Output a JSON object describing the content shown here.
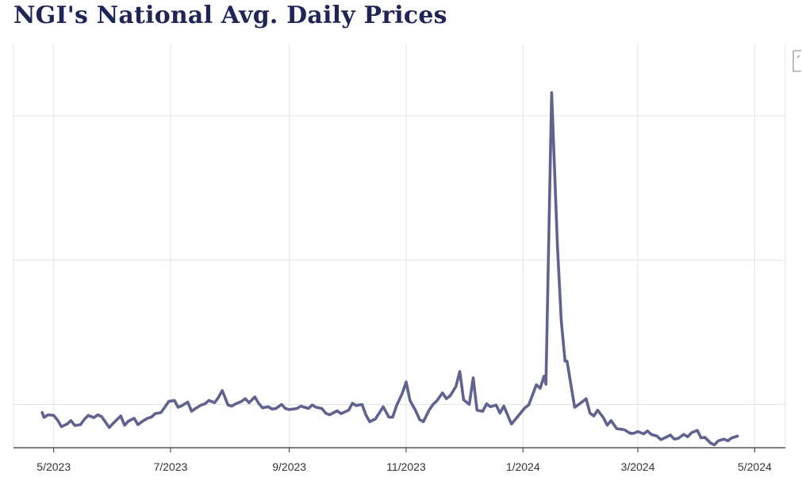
{
  "title": "NGI's National Avg. Daily Prices",
  "colors": {
    "line": "#60628f",
    "grid": "#e3e3e3",
    "axis": "#333333",
    "title": "#1f2557"
  },
  "icons": {
    "corner": "document-corner-icon"
  },
  "chart_data": {
    "type": "line",
    "title": "NGI's National Avg. Daily Prices",
    "xlabel": "",
    "ylabel": "",
    "x_type": "date",
    "xlim": [
      "2023-04-10",
      "2024-05-17"
    ],
    "ylim": [
      1.0,
      15.0
    ],
    "grid": true,
    "legend": "none",
    "x_ticks": [
      "5/2023",
      "7/2023",
      "9/2023",
      "11/2023",
      "1/2024",
      "3/2024",
      "5/2024"
    ],
    "x_tick_dates": [
      "2023-05-01",
      "2023-07-01",
      "2023-09-01",
      "2023-11-01",
      "2024-01-01",
      "2024-03-01",
      "2024-05-01"
    ],
    "y_gridlines": [
      2.5,
      7.5,
      12.5
    ],
    "series": [
      {
        "values": [
          [
            "2023-04-25",
            2.22
          ],
          [
            "2023-04-26",
            2.05
          ],
          [
            "2023-04-28",
            2.14
          ],
          [
            "2023-05-01",
            2.12
          ],
          [
            "2023-05-03",
            1.96
          ],
          [
            "2023-05-05",
            1.73
          ],
          [
            "2023-05-08",
            1.82
          ],
          [
            "2023-05-10",
            1.94
          ],
          [
            "2023-05-12",
            1.77
          ],
          [
            "2023-05-15",
            1.8
          ],
          [
            "2023-05-17",
            1.98
          ],
          [
            "2023-05-19",
            2.12
          ],
          [
            "2023-05-22",
            2.04
          ],
          [
            "2023-05-24",
            2.14
          ],
          [
            "2023-05-26",
            2.08
          ],
          [
            "2023-05-30",
            1.7
          ],
          [
            "2023-06-01",
            1.84
          ],
          [
            "2023-06-05",
            2.1
          ],
          [
            "2023-06-07",
            1.78
          ],
          [
            "2023-06-09",
            1.92
          ],
          [
            "2023-06-12",
            2.02
          ],
          [
            "2023-06-14",
            1.8
          ],
          [
            "2023-06-16",
            1.9
          ],
          [
            "2023-06-19",
            2.02
          ],
          [
            "2023-06-21",
            2.06
          ],
          [
            "2023-06-23",
            2.18
          ],
          [
            "2023-06-26",
            2.22
          ],
          [
            "2023-06-28",
            2.4
          ],
          [
            "2023-06-30",
            2.6
          ],
          [
            "2023-07-03",
            2.64
          ],
          [
            "2023-07-05",
            2.4
          ],
          [
            "2023-07-07",
            2.46
          ],
          [
            "2023-07-10",
            2.58
          ],
          [
            "2023-07-12",
            2.26
          ],
          [
            "2023-07-14",
            2.36
          ],
          [
            "2023-07-17",
            2.48
          ],
          [
            "2023-07-19",
            2.52
          ],
          [
            "2023-07-21",
            2.64
          ],
          [
            "2023-07-24",
            2.56
          ],
          [
            "2023-07-26",
            2.74
          ],
          [
            "2023-07-28",
            2.98
          ],
          [
            "2023-07-31",
            2.48
          ],
          [
            "2023-08-02",
            2.44
          ],
          [
            "2023-08-04",
            2.52
          ],
          [
            "2023-08-07",
            2.6
          ],
          [
            "2023-08-09",
            2.7
          ],
          [
            "2023-08-11",
            2.56
          ],
          [
            "2023-08-14",
            2.76
          ],
          [
            "2023-08-16",
            2.54
          ],
          [
            "2023-08-18",
            2.38
          ],
          [
            "2023-08-21",
            2.42
          ],
          [
            "2023-08-23",
            2.34
          ],
          [
            "2023-08-25",
            2.36
          ],
          [
            "2023-08-28",
            2.5
          ],
          [
            "2023-08-30",
            2.36
          ],
          [
            "2023-09-01",
            2.32
          ],
          [
            "2023-09-05",
            2.36
          ],
          [
            "2023-09-07",
            2.44
          ],
          [
            "2023-09-11",
            2.36
          ],
          [
            "2023-09-13",
            2.48
          ],
          [
            "2023-09-15",
            2.4
          ],
          [
            "2023-09-18",
            2.36
          ],
          [
            "2023-09-20",
            2.2
          ],
          [
            "2023-09-22",
            2.14
          ],
          [
            "2023-09-26",
            2.28
          ],
          [
            "2023-09-28",
            2.18
          ],
          [
            "2023-10-02",
            2.3
          ],
          [
            "2023-10-04",
            2.54
          ],
          [
            "2023-10-06",
            2.46
          ],
          [
            "2023-10-09",
            2.5
          ],
          [
            "2023-10-11",
            2.14
          ],
          [
            "2023-10-13",
            1.9
          ],
          [
            "2023-10-16",
            2.0
          ],
          [
            "2023-10-18",
            2.2
          ],
          [
            "2023-10-20",
            2.42
          ],
          [
            "2023-10-23",
            2.06
          ],
          [
            "2023-10-25",
            2.06
          ],
          [
            "2023-10-27",
            2.46
          ],
          [
            "2023-10-30",
            2.88
          ],
          [
            "2023-11-01",
            3.28
          ],
          [
            "2023-11-03",
            2.64
          ],
          [
            "2023-11-06",
            2.28
          ],
          [
            "2023-11-08",
            1.98
          ],
          [
            "2023-11-10",
            1.9
          ],
          [
            "2023-11-13",
            2.3
          ],
          [
            "2023-11-15",
            2.5
          ],
          [
            "2023-11-17",
            2.62
          ],
          [
            "2023-11-20",
            2.9
          ],
          [
            "2023-11-22",
            2.7
          ],
          [
            "2023-11-24",
            2.8
          ],
          [
            "2023-11-27",
            3.12
          ],
          [
            "2023-11-29",
            3.64
          ],
          [
            "2023-12-01",
            2.66
          ],
          [
            "2023-12-04",
            2.5
          ],
          [
            "2023-12-06",
            3.42
          ],
          [
            "2023-12-08",
            2.3
          ],
          [
            "2023-12-11",
            2.26
          ],
          [
            "2023-12-13",
            2.52
          ],
          [
            "2023-12-15",
            2.42
          ],
          [
            "2023-12-18",
            2.48
          ],
          [
            "2023-12-20",
            2.2
          ],
          [
            "2023-12-22",
            2.44
          ],
          [
            "2023-12-26",
            1.82
          ],
          [
            "2023-12-28",
            1.98
          ],
          [
            "2024-01-02",
            2.38
          ],
          [
            "2024-01-04",
            2.48
          ],
          [
            "2024-01-08",
            3.18
          ],
          [
            "2024-01-10",
            3.06
          ],
          [
            "2024-01-12",
            3.48
          ],
          [
            "2024-01-13",
            3.2
          ],
          [
            "2024-01-16",
            13.3
          ],
          [
            "2024-01-19",
            8.0
          ],
          [
            "2024-01-21",
            5.4
          ],
          [
            "2024-01-23",
            4.0
          ],
          [
            "2024-01-24",
            4.0
          ],
          [
            "2024-01-26",
            3.2
          ],
          [
            "2024-01-28",
            2.4
          ],
          [
            "2024-01-31",
            2.54
          ],
          [
            "2024-02-03",
            2.7
          ],
          [
            "2024-02-05",
            2.2
          ],
          [
            "2024-02-07",
            2.1
          ],
          [
            "2024-02-09",
            2.3
          ],
          [
            "2024-02-12",
            2.04
          ],
          [
            "2024-02-14",
            1.78
          ],
          [
            "2024-02-16",
            1.94
          ],
          [
            "2024-02-19",
            1.66
          ],
          [
            "2024-02-21",
            1.64
          ],
          [
            "2024-02-23",
            1.62
          ],
          [
            "2024-02-26",
            1.5
          ],
          [
            "2024-02-28",
            1.5
          ],
          [
            "2024-03-01",
            1.56
          ],
          [
            "2024-03-04",
            1.48
          ],
          [
            "2024-03-06",
            1.58
          ],
          [
            "2024-03-08",
            1.46
          ],
          [
            "2024-03-11",
            1.4
          ],
          [
            "2024-03-13",
            1.28
          ],
          [
            "2024-03-15",
            1.34
          ],
          [
            "2024-03-18",
            1.44
          ],
          [
            "2024-03-20",
            1.3
          ],
          [
            "2024-03-22",
            1.32
          ],
          [
            "2024-03-25",
            1.46
          ],
          [
            "2024-03-27",
            1.38
          ],
          [
            "2024-03-29",
            1.52
          ],
          [
            "2024-04-01",
            1.6
          ],
          [
            "2024-04-03",
            1.34
          ],
          [
            "2024-04-05",
            1.36
          ],
          [
            "2024-04-08",
            1.16
          ],
          [
            "2024-04-10",
            1.1
          ],
          [
            "2024-04-12",
            1.24
          ],
          [
            "2024-04-15",
            1.3
          ],
          [
            "2024-04-17",
            1.24
          ],
          [
            "2024-04-19",
            1.34
          ],
          [
            "2024-04-22",
            1.4
          ]
        ]
      }
    ]
  }
}
